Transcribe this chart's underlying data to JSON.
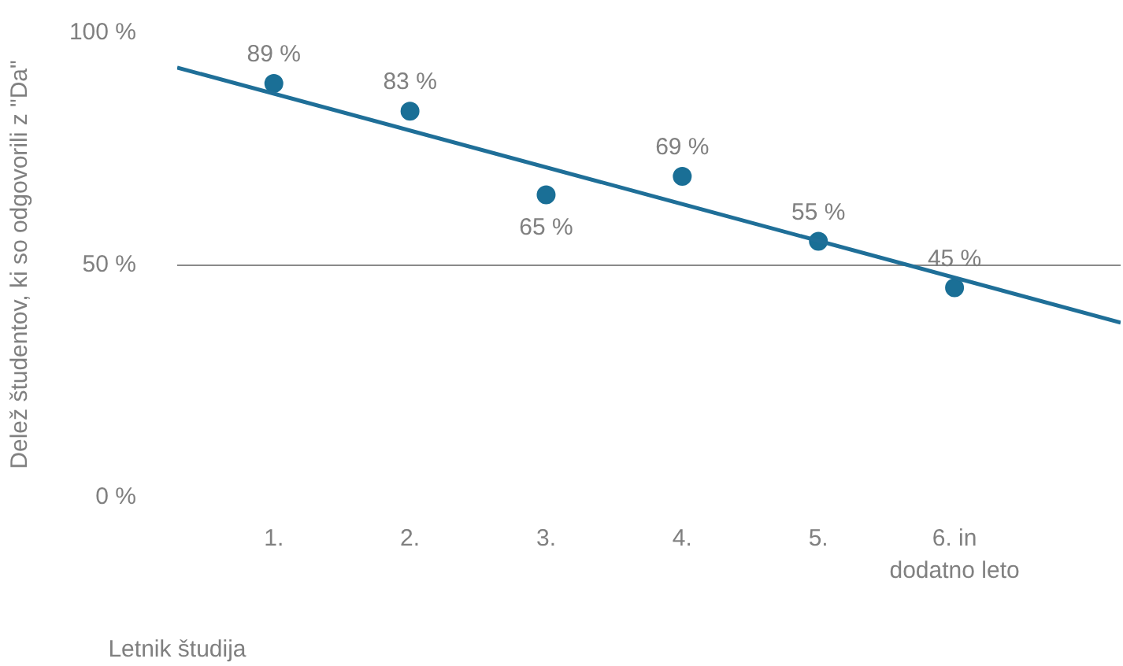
{
  "chart_data": {
    "type": "scatter",
    "xlabel": "Letnik študija",
    "ylabel": "Delež študentov, ki so odgovorili z \"Da\"",
    "x": [
      1,
      2,
      3,
      4,
      5,
      6
    ],
    "xlim": [
      0.29,
      7.22
    ],
    "xticks": [
      {
        "value": 1,
        "label": "1."
      },
      {
        "value": 2,
        "label": "2."
      },
      {
        "value": 3,
        "label": "3."
      },
      {
        "value": 4,
        "label": "4."
      },
      {
        "value": 5,
        "label": "5."
      },
      {
        "value": 6,
        "label": "6. in\ndodatno leto"
      }
    ],
    "ylim": [
      0,
      100
    ],
    "yticks": [
      {
        "value": 0,
        "label": "0 %"
      },
      {
        "value": 50,
        "label": "50 %"
      },
      {
        "value": 100,
        "label": "100 %"
      }
    ],
    "grid": "y",
    "marker": "circle",
    "series": [
      {
        "color": "#1a6f96",
        "values": [
          89,
          83,
          65,
          69,
          55,
          45
        ],
        "value_labels": [
          "89 %",
          "83 %",
          "65 %",
          "69 %",
          "55 %",
          "45 %"
        ]
      },
      {
        "type": "line",
        "marker": "none",
        "color": "#1f6f98",
        "x": [
          0.29,
          7.22
        ],
        "values": [
          92.4,
          37.5
        ]
      }
    ]
  }
}
